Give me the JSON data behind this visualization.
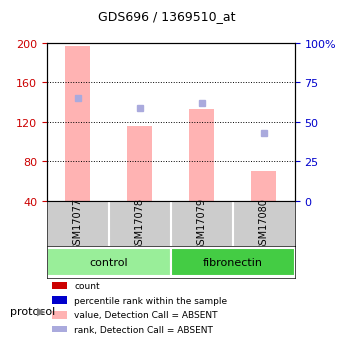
{
  "title": "GDS696 / 1369510_at",
  "samples": [
    "GSM17077",
    "GSM17078",
    "GSM17079",
    "GSM17080"
  ],
  "bar_values": [
    197,
    116,
    133,
    70
  ],
  "bar_color": "#ffb3b3",
  "bar_bottom": 40,
  "rank_values": [
    65,
    59,
    62,
    43
  ],
  "rank_color": "#aaaadd",
  "left_ylim": [
    40,
    200
  ],
  "left_yticks": [
    40,
    80,
    120,
    160,
    200
  ],
  "left_ycolor": "#cc0000",
  "right_ylim": [
    0,
    100
  ],
  "right_yticks": [
    0,
    25,
    50,
    75,
    100
  ],
  "right_ycolor": "#0000cc",
  "right_yticklabels": [
    "0",
    "25",
    "50",
    "75",
    "100%"
  ],
  "groups": [
    {
      "label": "control",
      "samples": [
        0,
        1
      ],
      "color": "#99ee99"
    },
    {
      "label": "fibronectin",
      "samples": [
        2,
        3
      ],
      "color": "#44cc44"
    }
  ],
  "protocol_label": "protocol",
  "legend_items": [
    {
      "color": "#cc0000",
      "label": "count",
      "marker": "s"
    },
    {
      "color": "#0000cc",
      "label": "percentile rank within the sample",
      "marker": "s"
    },
    {
      "color": "#ffb3b3",
      "label": "value, Detection Call = ABSENT",
      "marker": "s"
    },
    {
      "color": "#aaaadd",
      "label": "rank, Detection Call = ABSENT",
      "marker": "s"
    }
  ],
  "background_color": "#ffffff",
  "grid_color": "#000000",
  "bar_width": 0.4
}
